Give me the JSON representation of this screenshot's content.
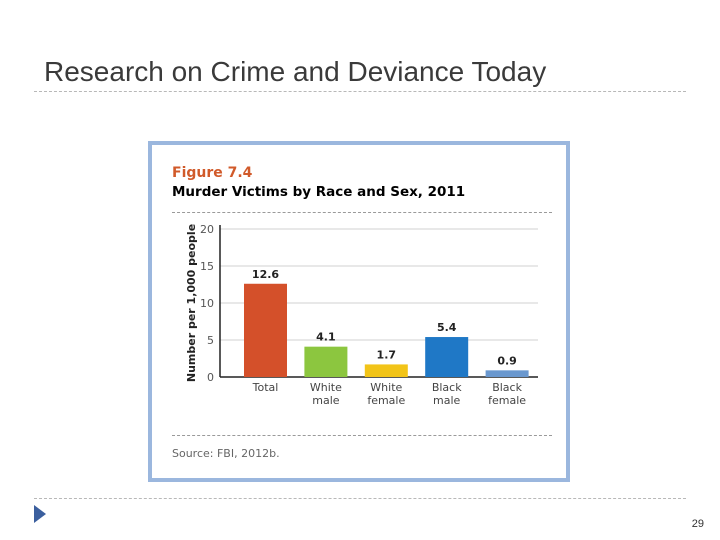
{
  "slide": {
    "title": "Research on Crime and Deviance Today",
    "page_number": "29"
  },
  "figure": {
    "label": "Figure 7.4",
    "title": "Murder Victims by Race and Sex, 2011",
    "source": "Source: FBI, 2012b."
  },
  "colors": {
    "accent_label": "#d15a2a",
    "frame_border": "#9bb7de",
    "bullet": "#3b5f9e"
  },
  "chart_data": {
    "type": "bar",
    "title": "Murder Victims by Race and Sex, 2011",
    "xlabel": "",
    "ylabel": "Number per 1,000 people",
    "ylim": [
      0,
      20
    ],
    "yticks": [
      "0",
      "5",
      "10",
      "15",
      "20"
    ],
    "grid": true,
    "categories": [
      [
        "Total"
      ],
      [
        "White",
        "male"
      ],
      [
        "White",
        "female"
      ],
      [
        "Black",
        "male"
      ],
      [
        "Black",
        "female"
      ]
    ],
    "values": [
      12.6,
      4.1,
      1.7,
      5.4,
      0.9
    ],
    "value_labels": [
      "12.6",
      "4.1",
      "1.7",
      "5.4",
      "0.9"
    ],
    "colors": [
      "#d4502a",
      "#8cc63f",
      "#f2c418",
      "#1f78c6",
      "#6a98cf"
    ]
  }
}
